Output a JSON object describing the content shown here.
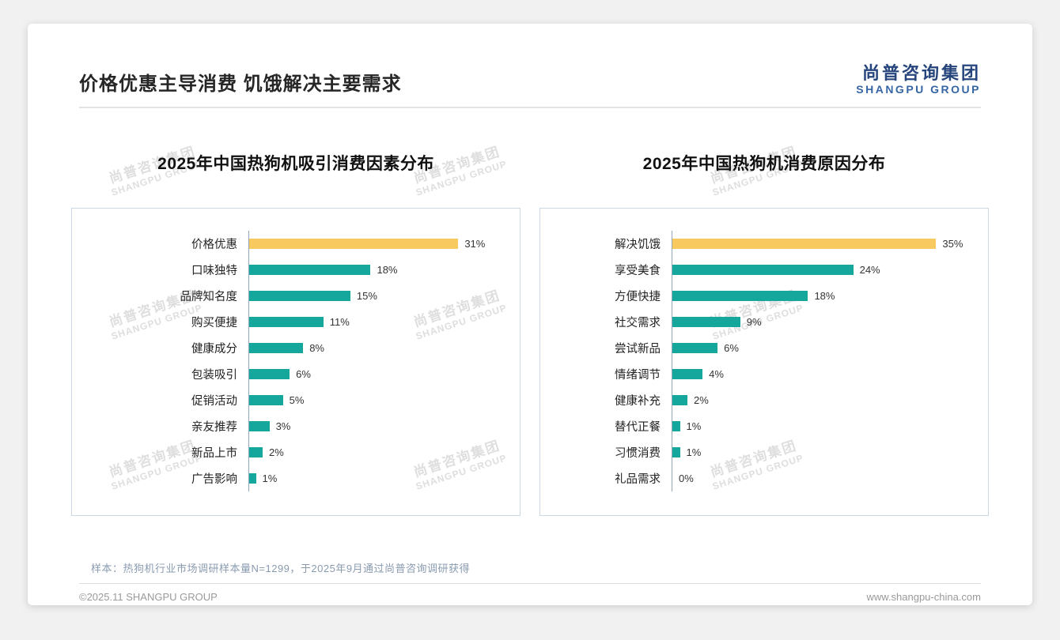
{
  "page": {
    "title": "价格优惠主导消费 饥饿解决主要需求",
    "logo": {
      "cn": "尚普咨询集团",
      "en": "SHANGPU GROUP"
    },
    "watermark": {
      "cn": "尚普咨询集团",
      "en": "SHANGPU GROUP"
    },
    "footer": {
      "note": "样本：热狗机行业市场调研样本量N=1299，于2025年9月通过尚普咨询调研获得",
      "copyright": "©2025.11 SHANGPU GROUP",
      "website": "www.shangpu-china.com"
    }
  },
  "colors": {
    "bar_teal": "#16A79C",
    "bar_yellow": "#F7C95F",
    "logo_blue": "#26457C"
  },
  "chart_data": [
    {
      "type": "bar",
      "orientation": "horizontal",
      "title": "2025年中国热狗机吸引消费因素分布",
      "categories": [
        "价格优惠",
        "口味独特",
        "品牌知名度",
        "购买便捷",
        "健康成分",
        "包装吸引",
        "促销活动",
        "亲友推荐",
        "新品上市",
        "广告影响"
      ],
      "values": [
        31,
        18,
        15,
        11,
        8,
        6,
        5,
        3,
        2,
        1
      ],
      "value_labels": [
        "31%",
        "18%",
        "15%",
        "11%",
        "8%",
        "6%",
        "5%",
        "3%",
        "2%",
        "1%"
      ],
      "unit": "%",
      "xlim": [
        0,
        38
      ],
      "highlight_index": 0,
      "highlight_color": "#F7C95F",
      "bar_color": "#16A79C",
      "grid": false,
      "legend": "none",
      "label_width": "205px"
    },
    {
      "type": "bar",
      "orientation": "horizontal",
      "title": "2025年中国热狗机消费原因分布",
      "categories": [
        "解决饥饿",
        "享受美食",
        "方便快捷",
        "社交需求",
        "尝试新品",
        "情绪调节",
        "健康补充",
        "替代正餐",
        "习惯消费",
        "礼品需求"
      ],
      "values": [
        35,
        24,
        18,
        9,
        6,
        4,
        2,
        1,
        1,
        0
      ],
      "value_labels": [
        "35%",
        "24%",
        "18%",
        "9%",
        "6%",
        "4%",
        "2%",
        "1%",
        "1%",
        "0%"
      ],
      "unit": "%",
      "xlim": [
        0,
        40
      ],
      "highlight_index": 0,
      "highlight_color": "#F7C95F",
      "bar_color": "#16A79C",
      "grid": false,
      "legend": "none",
      "label_width": "148px"
    }
  ]
}
